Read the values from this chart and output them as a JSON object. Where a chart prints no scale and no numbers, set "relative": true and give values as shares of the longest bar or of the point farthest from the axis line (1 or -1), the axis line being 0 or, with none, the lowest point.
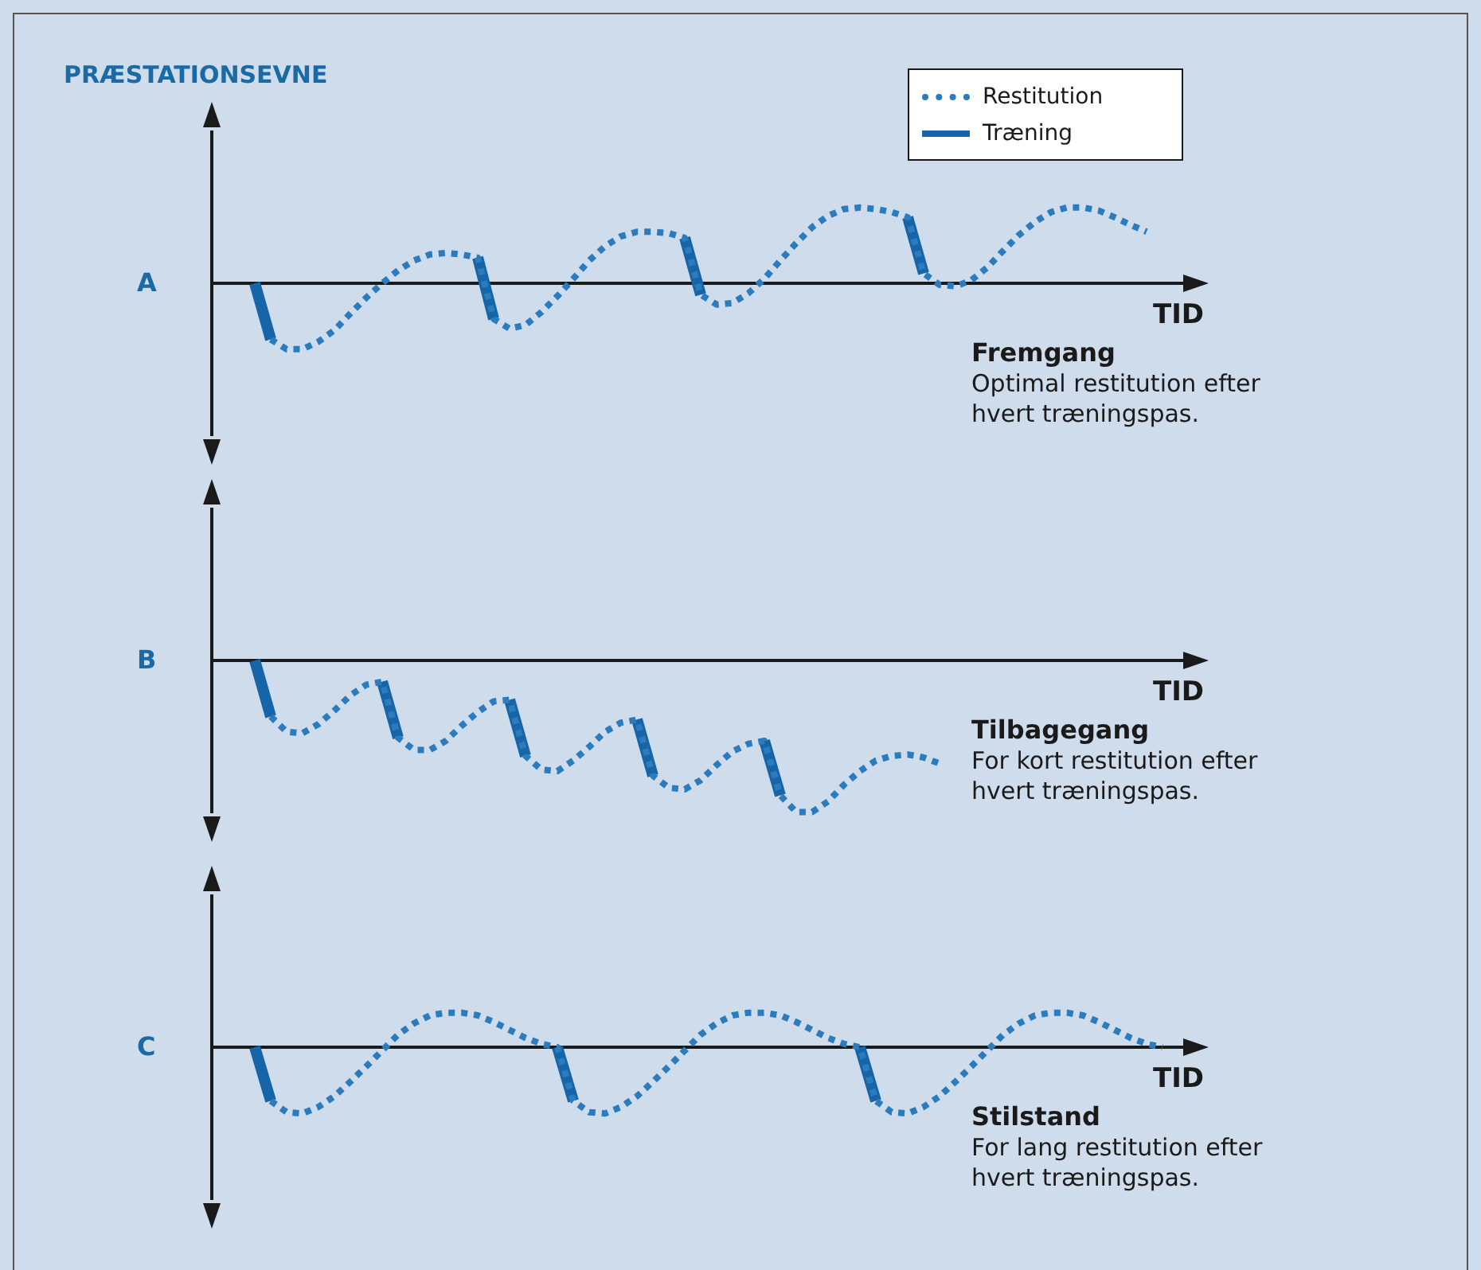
{
  "chart_data": [
    {
      "type": "line",
      "relative": true,
      "ylabel": "PRÆSTATIONSEVNE",
      "xlabel": "TID",
      "legend": "top right",
      "marker": "none",
      "annotations": [
        "A",
        "Fremgang",
        "Optimal restitution efter hvert træningspas."
      ],
      "categories": [
        null,
        null,
        null,
        null,
        null,
        null,
        null,
        null,
        null,
        null,
        null,
        null,
        null,
        null,
        null,
        null,
        null,
        null,
        null,
        null,
        null,
        null,
        null,
        null,
        null,
        null,
        null,
        null,
        null,
        null,
        null,
        null,
        null,
        null,
        null,
        null,
        null,
        null,
        null,
        null,
        null,
        null,
        null,
        null,
        null,
        null,
        null,
        null,
        null,
        null,
        null,
        null,
        null,
        null,
        null,
        null,
        null
      ],
      "series": [
        {
          "name": "Restitution",
          "line_style": "dotted",
          "color": "#2b7bbd",
          "values": [
            null,
            -0.74,
            -0.87,
            -0.87,
            -0.77,
            -0.62,
            -0.4,
            -0.19,
            0,
            0.17,
            0.3,
            0.38,
            0.4,
            0.38,
            0.34,
            -0.47,
            -0.6,
            -0.55,
            -0.38,
            -0.17,
            0.06,
            0.3,
            0.49,
            0.62,
            0.68,
            0.68,
            0.66,
            0.6,
            -0.15,
            -0.28,
            -0.26,
            -0.13,
            0.06,
            0.3,
            0.53,
            0.74,
            0.89,
            0.98,
            1,
            0.98,
            0.94,
            0.87,
            0.13,
            -0.02,
            -0.04,
            0.04,
            0.21,
            0.43,
            0.64,
            0.81,
            0.94,
            1,
            1,
            0.96,
            0.87,
            0.77,
            0.68
          ]
        },
        {
          "name": "Træning",
          "line_style": "solid",
          "color": "#1565a8",
          "values": [
            0,
            -0.74,
            null,
            null,
            null,
            null,
            null,
            null,
            null,
            null,
            null,
            null,
            null,
            null,
            0.34,
            -0.47,
            null,
            null,
            null,
            null,
            null,
            null,
            null,
            null,
            null,
            null,
            null,
            0.6,
            -0.15,
            null,
            null,
            null,
            null,
            null,
            null,
            null,
            null,
            null,
            null,
            null,
            null,
            0.87,
            0.13,
            null,
            null,
            null,
            null,
            null,
            null,
            null,
            null,
            null,
            null,
            null,
            null,
            null,
            null
          ]
        }
      ]
    },
    {
      "type": "line",
      "relative": true,
      "xlabel": "TID",
      "marker": "none",
      "annotations": [
        "B",
        "Tilbagegang",
        "For kort restitution efter hvert træningspas."
      ],
      "categories": [
        null,
        null,
        null,
        null,
        null,
        null,
        null,
        null,
        null,
        null,
        null,
        null,
        null,
        null,
        null,
        null,
        null,
        null,
        null,
        null,
        null,
        null,
        null,
        null,
        null,
        null,
        null,
        null,
        null,
        null,
        null,
        null,
        null,
        null,
        null,
        null,
        null,
        null,
        null,
        null,
        null,
        null,
        null,
        null,
        null,
        null,
        null,
        null,
        null,
        null,
        null,
        null,
        null,
        null,
        null,
        null,
        null,
        null,
        null
      ],
      "series": [
        {
          "line_style": "dotted",
          "color": "#2b7bbd",
          "values": [
            null,
            -0.37,
            -0.47,
            -0.48,
            -0.42,
            -0.33,
            -0.23,
            -0.16,
            -0.14,
            -0.51,
            -0.59,
            -0.59,
            -0.53,
            -0.43,
            -0.34,
            -0.27,
            -0.26,
            -0.63,
            -0.72,
            -0.73,
            -0.66,
            -0.57,
            -0.47,
            -0.41,
            -0.39,
            -0.76,
            -0.84,
            -0.85,
            -0.79,
            -0.69,
            -0.6,
            -0.55,
            -0.53,
            -0.89,
            -1,
            -1,
            -0.93,
            -0.82,
            -0.73,
            -0.66,
            -0.63,
            -0.62,
            -0.64,
            -0.68,
            null,
            null,
            null,
            null,
            null,
            null,
            null,
            null,
            null,
            null,
            null,
            null,
            null,
            null,
            null
          ]
        },
        {
          "line_style": "solid",
          "color": "#1565a8",
          "values": [
            0,
            -0.37,
            null,
            null,
            null,
            null,
            null,
            null,
            -0.14,
            -0.51,
            null,
            null,
            null,
            null,
            null,
            null,
            -0.26,
            -0.63,
            null,
            null,
            null,
            null,
            null,
            null,
            -0.39,
            -0.76,
            null,
            null,
            null,
            null,
            null,
            null,
            -0.53,
            -0.89,
            null,
            null,
            null,
            null,
            null,
            null,
            null,
            null,
            null,
            null,
            null,
            null,
            null,
            null,
            null,
            null,
            null,
            null,
            null,
            null,
            null,
            null,
            null,
            null,
            null
          ]
        }
      ]
    },
    {
      "type": "line",
      "relative": true,
      "xlabel": "TID",
      "marker": "none",
      "annotations": [
        "C",
        "Stilstand",
        "For lang restitution efter hvert træningspas."
      ],
      "categories": [
        null,
        null,
        null,
        null,
        null,
        null,
        null,
        null,
        null,
        null,
        null,
        null,
        null,
        null,
        null,
        null,
        null,
        null,
        null,
        null,
        null,
        null,
        null,
        null,
        null,
        null,
        null,
        null,
        null,
        null,
        null,
        null,
        null,
        null,
        null,
        null,
        null,
        null,
        null,
        null,
        null,
        null,
        null,
        null,
        null,
        null,
        null,
        null,
        null,
        null,
        null,
        null,
        null,
        null,
        null,
        null,
        null,
        null
      ],
      "series": [
        {
          "line_style": "dotted",
          "color": "#2b7bbd",
          "values": [
            null,
            -0.81,
            -0.98,
            -1,
            -0.9,
            -0.74,
            -0.52,
            -0.29,
            -0.05,
            0.19,
            0.36,
            0.48,
            0.52,
            0.52,
            0.48,
            0.38,
            0.26,
            0.14,
            0.05,
            0,
            -0.81,
            -0.98,
            -1,
            -0.9,
            -0.74,
            -0.52,
            -0.29,
            -0.05,
            0.19,
            0.36,
            0.48,
            0.52,
            0.52,
            0.48,
            0.38,
            0.26,
            0.14,
            0.05,
            0,
            -0.81,
            -0.98,
            -1,
            -0.9,
            -0.74,
            -0.52,
            -0.29,
            -0.05,
            0.19,
            0.36,
            0.48,
            0.52,
            0.52,
            0.48,
            0.38,
            0.26,
            0.14,
            0.05,
            0
          ]
        },
        {
          "line_style": "solid",
          "color": "#1565a8",
          "values": [
            0,
            -0.81,
            null,
            null,
            null,
            null,
            null,
            null,
            null,
            null,
            null,
            null,
            null,
            null,
            null,
            null,
            null,
            null,
            null,
            0,
            -0.81,
            null,
            null,
            null,
            null,
            null,
            null,
            null,
            null,
            null,
            null,
            null,
            null,
            null,
            null,
            null,
            null,
            null,
            0,
            -0.81,
            null,
            null,
            null,
            null,
            null,
            null,
            null,
            null,
            null,
            null,
            null,
            null,
            null,
            null,
            null,
            null,
            null,
            null
          ]
        }
      ]
    }
  ]
}
